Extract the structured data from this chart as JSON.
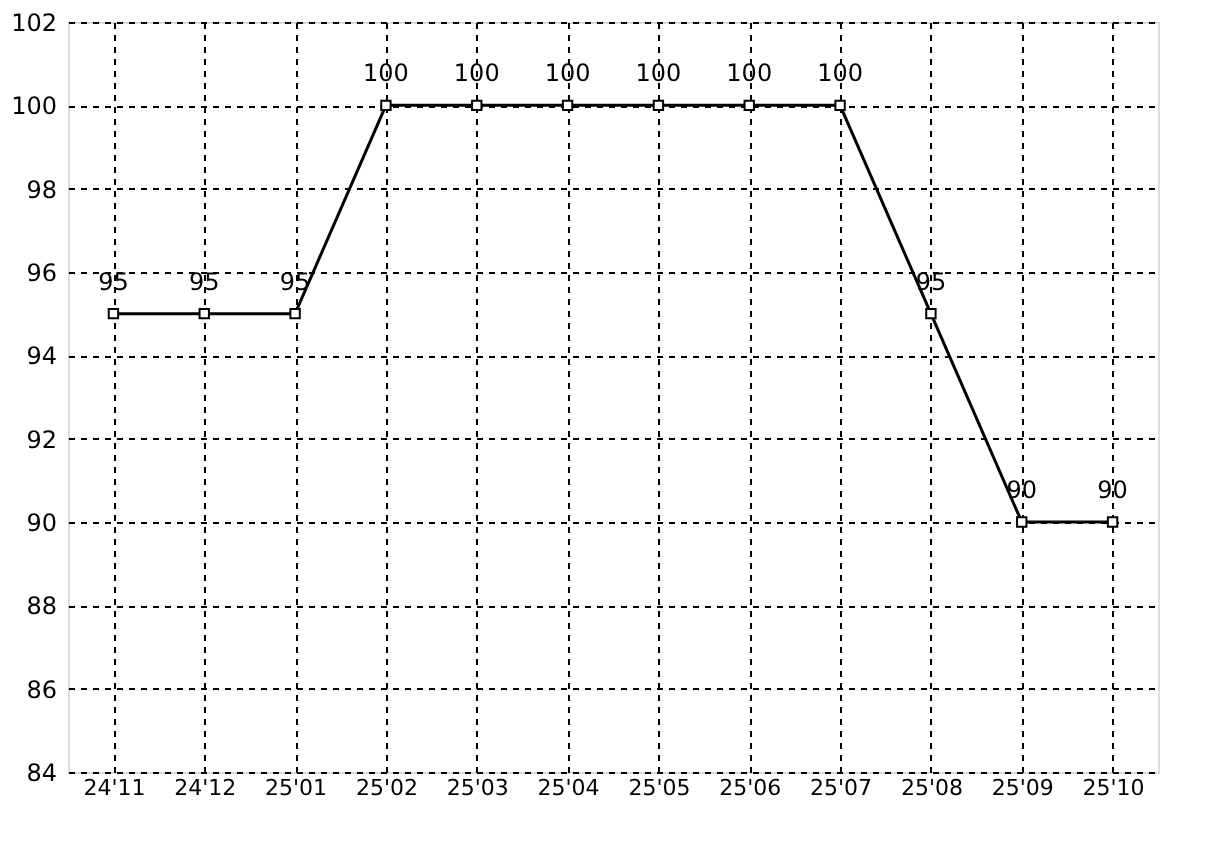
{
  "chart_data": {
    "type": "line",
    "categories": [
      "24'11",
      "24'12",
      "25'01",
      "25'02",
      "25'03",
      "25'04",
      "25'05",
      "25'06",
      "25'07",
      "25'08",
      "25'09",
      "25'10"
    ],
    "series": [
      {
        "color": "#000000",
        "values": [
          95,
          95,
          95,
          100,
          100,
          100,
          100,
          100,
          100,
          95,
          90,
          90
        ]
      }
    ],
    "ylim": [
      84,
      102
    ],
    "yticks": [
      84,
      86,
      88,
      90,
      92,
      94,
      96,
      98,
      100,
      102
    ],
    "grid": true,
    "marker": "square",
    "line_style": "solid",
    "data_labels": true
  }
}
